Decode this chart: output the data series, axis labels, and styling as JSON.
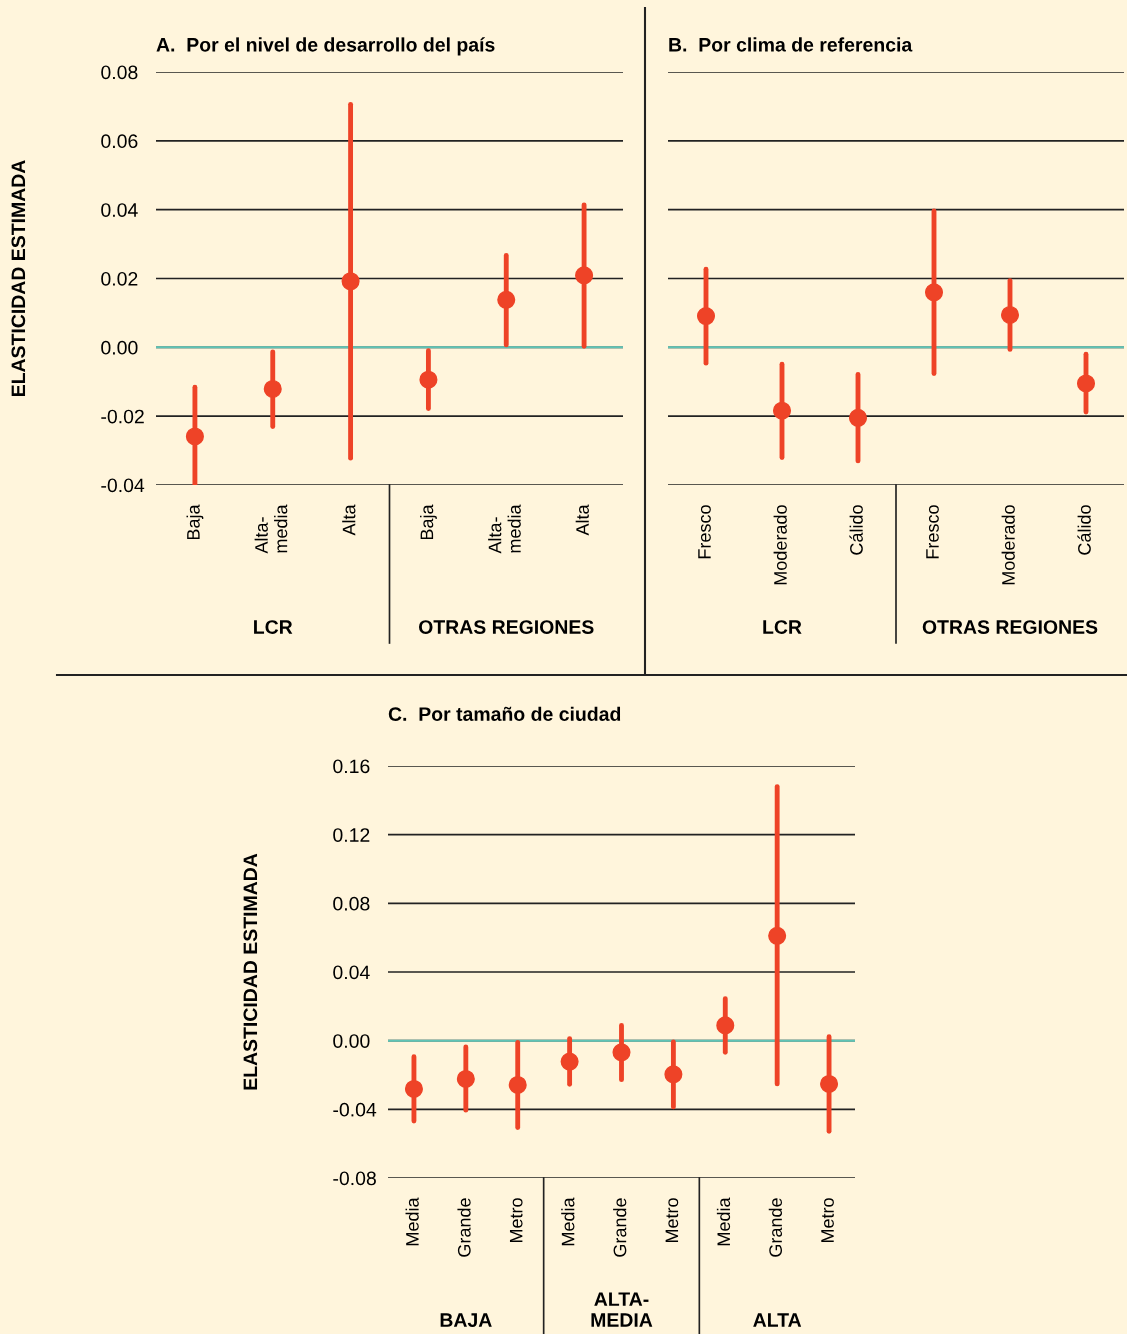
{
  "chart_data": [
    {
      "type": "scatter",
      "title": "A.  Por el nivel de desarrollo del país",
      "ylabel": "ELASTICIDAD ESTIMADA",
      "categories": [
        "Baja",
        "Alta-\nmedia",
        "Alta",
        "Baja",
        "Alta-\nmedia",
        "Alta"
      ],
      "series": [
        {
          "color": "#ee4327",
          "values": [
            -0.0259,
            -0.0121,
            0.0192,
            -0.0094,
            0.0138,
            0.0209
          ],
          "errors": [
            [
              -0.04,
              -0.0116
            ],
            [
              -0.023,
              -0.0013
            ],
            [
              -0.0322,
              0.0706
            ],
            [
              -0.0178,
              -0.001
            ],
            [
              0.0007,
              0.0267
            ],
            [
              0.0003,
              0.0414
            ]
          ]
        }
      ],
      "ylim": [
        -0.04,
        0.08
      ],
      "yticks": [
        {
          "value": -0.04,
          "label": "-0.04"
        },
        {
          "value": -0.02,
          "label": "-0.02"
        },
        {
          "value": 0,
          "label": "0.00"
        },
        {
          "value": 0.02,
          "label": "0.02"
        },
        {
          "value": 0.04,
          "label": "0.04"
        },
        {
          "value": 0.06,
          "label": "0.06"
        },
        {
          "value": 0.08,
          "label": "0.08"
        }
      ],
      "ref_lines": [
        {
          "axis": "y",
          "value": 0,
          "color": "#5ec4b6"
        }
      ],
      "grid": "y",
      "marker": "circle",
      "legend": false,
      "annotations": [
        "LCR",
        "OTRAS REGIONES"
      ]
    },
    {
      "type": "scatter",
      "title": "B.  Por clima de referencia",
      "categories": [
        "Fresco",
        "Moderado",
        "Cálido",
        "Fresco",
        "Moderado",
        "Cálido"
      ],
      "series": [
        {
          "color": "#ee4327",
          "values": [
            0.0091,
            -0.0184,
            -0.0205,
            0.016,
            0.0094,
            -0.0105
          ],
          "errors": [
            [
              -0.0046,
              0.0227
            ],
            [
              -0.032,
              -0.0049
            ],
            [
              -0.033,
              -0.0079
            ],
            [
              -0.0076,
              0.0396
            ],
            [
              -0.0006,
              0.0194
            ],
            [
              -0.0188,
              -0.002
            ]
          ]
        }
      ],
      "ylim": [
        -0.04,
        0.08
      ],
      "yticks": [
        {
          "value": -0.04,
          "label": null
        },
        {
          "value": -0.02,
          "label": null
        },
        {
          "value": 0,
          "label": null
        },
        {
          "value": 0.02,
          "label": null
        },
        {
          "value": 0.04,
          "label": null
        },
        {
          "value": 0.06,
          "label": null
        },
        {
          "value": 0.08,
          "label": null
        }
      ],
      "ref_lines": [
        {
          "axis": "y",
          "value": 0,
          "color": "#5ec4b6"
        }
      ],
      "grid": "y",
      "marker": "circle",
      "legend": false,
      "tick_labels": "x",
      "annotations": [
        "LCR",
        "OTRAS REGIONES"
      ]
    },
    {
      "type": "scatter",
      "title": "C.  Por tamaño de ciudad",
      "ylabel": "ELASTICIDAD ESTIMADA",
      "categories": [
        "Media",
        "Grande",
        "Metro",
        "Media",
        "Grande",
        "Metro",
        "Media",
        "Grande",
        "Metro"
      ],
      "series": [
        {
          "color": "#ee4327",
          "values": [
            -0.0281,
            -0.0223,
            -0.0258,
            -0.0122,
            -0.0068,
            -0.0196,
            0.0089,
            0.0611,
            -0.0252
          ],
          "errors": [
            [
              -0.0468,
              -0.0093
            ],
            [
              -0.0405,
              -0.0037
            ],
            [
              -0.0506,
              -0.001
            ],
            [
              -0.0254,
              0.0012
            ],
            [
              -0.0227,
              0.0089
            ],
            [
              -0.0386,
              -0.0008
            ],
            [
              -0.0068,
              0.0244
            ],
            [
              -0.0252,
              0.148
            ],
            [
              -0.0528,
              0.0023
            ]
          ]
        }
      ],
      "ylim": [
        -0.08,
        0.16
      ],
      "yticks": [
        {
          "value": -0.08,
          "label": "-0.08"
        },
        {
          "value": -0.04,
          "label": "-0.04"
        },
        {
          "value": 0,
          "label": "0.00"
        },
        {
          "value": 0.04,
          "label": "0.04"
        },
        {
          "value": 0.08,
          "label": "0.08"
        },
        {
          "value": 0.12,
          "label": "0.12"
        },
        {
          "value": 0.16,
          "label": "0.16"
        }
      ],
      "ref_lines": [
        {
          "axis": "y",
          "value": 0,
          "color": "#5ec4b6"
        }
      ],
      "grid": "y",
      "marker": "circle",
      "legend": false,
      "annotations": [
        "BAJA",
        "ALTA-\nMEDIA",
        "ALTA"
      ]
    }
  ]
}
